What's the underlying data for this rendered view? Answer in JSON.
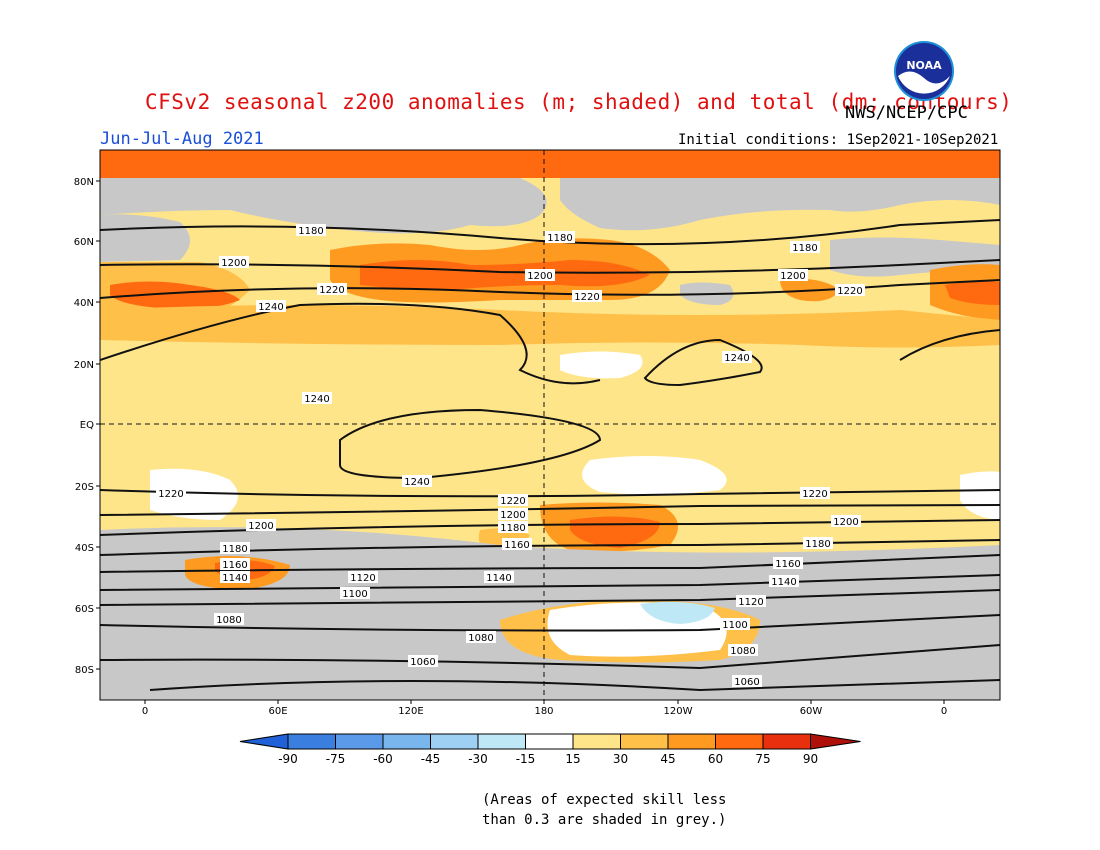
{
  "title": "CFSv2 seasonal z200 anomalies (m; shaded) and total (dm; contours)",
  "agency": "NWS/NCEP/CPC",
  "period": "Jun-Jul-Aug 2021",
  "initial_conditions": "Initial conditions: 1Sep2021-10Sep2021",
  "logo_text": "NOAA",
  "lat_labels": [
    "80N",
    "60N",
    "40N",
    "20N",
    "EQ",
    "20S",
    "40S",
    "60S",
    "80S"
  ],
  "lon_labels": [
    "0",
    "60E",
    "120E",
    "180",
    "120W",
    "60W",
    "0"
  ],
  "colorbar": {
    "ticks": [
      "-90",
      "-75",
      "-60",
      "-45",
      "-30",
      "-15",
      "15",
      "30",
      "45",
      "60",
      "75",
      "90"
    ],
    "colors": [
      "#2060d8",
      "#3a7fe0",
      "#5a9ae8",
      "#7ab6ee",
      "#9dd0f2",
      "#bfe8f6",
      "#ffffff",
      "#ffe58a",
      "#ffc04a",
      "#ff9a20",
      "#ff6a10",
      "#e8300e",
      "#b0100a"
    ]
  },
  "contour_labels": [
    "1180",
    "1200",
    "1220",
    "1240",
    "1180",
    "1200",
    "1220",
    "1180",
    "1200",
    "1220",
    "1240",
    "1240",
    "1240",
    "1220",
    "1200",
    "1180",
    "1160",
    "1140",
    "1120",
    "1100",
    "1080",
    "1220",
    "1200",
    "1180",
    "1160",
    "1140",
    "1120",
    "1080",
    "1060",
    "1220",
    "1200",
    "1180",
    "1160",
    "1140",
    "1120",
    "1100",
    "1080",
    "1060"
  ],
  "contour_values": [
    1060,
    1080,
    1100,
    1120,
    1140,
    1160,
    1180,
    1200,
    1220,
    1240
  ],
  "note": [
    "(Areas of expected skill less",
    "than 0.3 are shaded in grey.)"
  ],
  "colors": {
    "title": "#e01010",
    "period": "#1a4fd8",
    "skill_grey": "#c8c8c8",
    "ocean_bg": "#ffe58a"
  }
}
